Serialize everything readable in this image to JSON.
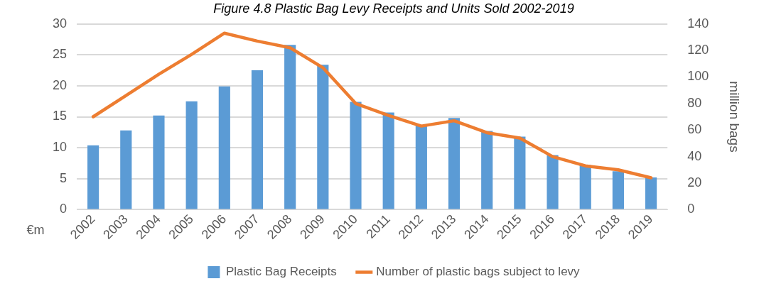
{
  "chart_data": {
    "type": "bar",
    "title": "Figure 4.8 Plastic Bag Levy Receipts and Units Sold 2002-2019",
    "categories": [
      "2002",
      "2003",
      "2004",
      "2005",
      "2006",
      "2007",
      "2008",
      "2009",
      "2010",
      "2011",
      "2012",
      "2013",
      "2014",
      "2015",
      "2016",
      "2017",
      "2018",
      "2019"
    ],
    "series": [
      {
        "name": "Plastic Bag Receipts",
        "color": "#5b9bd5",
        "values": [
          10.4,
          12.8,
          15.2,
          17.5,
          19.9,
          22.5,
          26.6,
          23.4,
          17.4,
          15.7,
          13.6,
          14.8,
          12.7,
          11.8,
          8.8,
          7.2,
          6.2,
          5.2
        ]
      },
      {
        "name": "Number of plastic bags subject to levy",
        "type": "line",
        "axis": "y2",
        "color": "#ed7d31",
        "values": [
          70,
          86,
          102,
          117,
          133,
          127,
          122,
          107,
          80,
          71,
          63,
          67,
          58,
          54,
          40,
          33,
          30,
          24
        ]
      }
    ],
    "ylabel": "€m",
    "y2label": "million bags",
    "ylim": [
      0,
      30
    ],
    "yticks": [
      0,
      5,
      10,
      15,
      20,
      25,
      30
    ],
    "y2lim": [
      0,
      140
    ],
    "y2ticks": [
      0,
      20,
      40,
      60,
      80,
      100,
      120,
      140
    ],
    "grid": "y",
    "legend": "bottom",
    "marker": "none"
  }
}
